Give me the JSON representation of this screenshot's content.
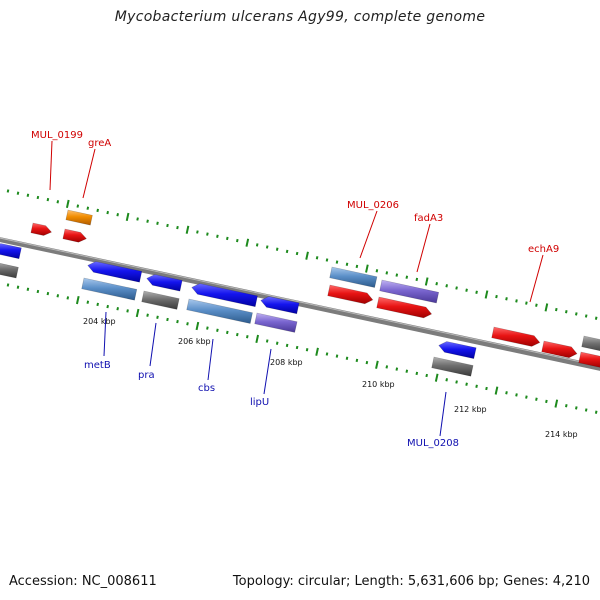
{
  "header": {
    "title": "Mycobacterium ulcerans Agy99, complete genome"
  },
  "footer": {
    "accession": "Accession: NC_008611",
    "summary": "Topology: circular; Length: 5,631,606 bp; Genes: 4,210"
  },
  "axis": {
    "kbp_labels": [
      "204 kbp",
      "206 kbp",
      "208 kbp",
      "210 kbp",
      "212 kbp",
      "214 kbp"
    ]
  },
  "genes": {
    "forward_labels": [
      "MUL_0199",
      "greA",
      "MUL_0206",
      "fadA3",
      "echA9"
    ],
    "reverse_labels": [
      "metB",
      "pra",
      "cbs",
      "lipU",
      "MUL_0208"
    ]
  },
  "colors": {
    "red_gene": "#e01010",
    "orange_gene": "#f08c00",
    "blue_gene": "#1010e0",
    "steel_gene": "#5b8fc8",
    "gray_gene": "#707070",
    "purple_gene": "#7a66d0",
    "backbone": "#808080",
    "tick": "#1d8a1d",
    "red_label": "#d00000",
    "blue_label": "#1010b0"
  }
}
